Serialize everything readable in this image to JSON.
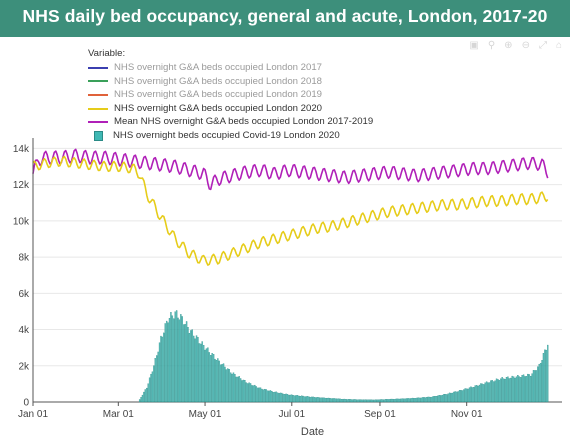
{
  "banner": {
    "title": "NHS daily bed occupancy, general and acute, London, 2017-20"
  },
  "legend": {
    "title": "Variable:",
    "items": [
      {
        "label": "NHS overnight G&A beds occupied London 2017",
        "color": "#3b3fb0",
        "kind": "line",
        "faded": true
      },
      {
        "label": "NHS overnight G&A beds occupied London 2018",
        "color": "#3aa05a",
        "kind": "line",
        "faded": true
      },
      {
        "label": "NHS overnight G&A beds occupied London 2019",
        "color": "#e0623a",
        "kind": "line",
        "faded": true
      },
      {
        "label": "NHS overnight G&A beds occupied London 2020",
        "color": "#e6cc1a",
        "kind": "line",
        "faded": false
      },
      {
        "label": "Mean NHS overnight G&A beds occupied London 2017-2019",
        "color": "#b020b8",
        "kind": "line",
        "faded": false
      },
      {
        "label": "NHS overnight beds occupied Covid-19 London 2020",
        "color": "#3fb8b4",
        "kind": "box",
        "faded": false
      }
    ]
  },
  "chart_data": {
    "type": "line",
    "x_unit": "day of year (Jan 1 = 0)",
    "xlabel": "Date",
    "ylabel": "",
    "xlim": [
      0,
      365
    ],
    "ylim": [
      0,
      14300
    ],
    "y_ticks": [
      0,
      2000,
      4000,
      6000,
      8000,
      10000,
      12000,
      14000
    ],
    "y_tick_labels": [
      "0",
      "2k",
      "4k",
      "6k",
      "8k",
      "10k",
      "12k",
      "14k"
    ],
    "x_ticks": [
      0,
      60,
      121,
      182,
      244,
      305
    ],
    "x_tick_labels": [
      "Jan 01",
      "Mar 01",
      "May 01",
      "Jul 01",
      "Sep 01",
      "Nov 01"
    ],
    "grid": "horizontal",
    "series": [
      {
        "name": "Mean NHS overnight G&A beds occupied London 2017-2019",
        "color": "#b020b8",
        "x": [
          0,
          4,
          10,
          20,
          30,
          40,
          50,
          60,
          70,
          80,
          90,
          100,
          110,
          120,
          125,
          130,
          140,
          150,
          160,
          170,
          180,
          190,
          200,
          210,
          220,
          230,
          240,
          250,
          260,
          270,
          280,
          290,
          300,
          310,
          320,
          330,
          340,
          350,
          358,
          362
        ],
        "y": [
          12600,
          13400,
          13500,
          13500,
          13600,
          13500,
          13500,
          13400,
          13300,
          13200,
          13100,
          13000,
          12800,
          12600,
          12000,
          12300,
          12500,
          12700,
          12800,
          12600,
          12800,
          12700,
          12600,
          12500,
          12400,
          12500,
          12600,
          12700,
          12600,
          12500,
          12600,
          12700,
          12800,
          12900,
          12900,
          13000,
          13100,
          13200,
          13100,
          12700
        ]
      },
      {
        "name": "NHS overnight G&A beds occupied London 2020",
        "color": "#e6cc1a",
        "x": [
          0,
          10,
          20,
          30,
          40,
          50,
          60,
          70,
          75,
          80,
          90,
          100,
          110,
          120,
          130,
          140,
          150,
          160,
          170,
          180,
          190,
          200,
          210,
          220,
          230,
          240,
          250,
          260,
          270,
          280,
          290,
          300,
          310,
          320,
          330,
          340,
          350,
          358,
          362
        ],
        "y": [
          13000,
          13200,
          13300,
          13200,
          13100,
          13000,
          13000,
          12900,
          12600,
          11500,
          10200,
          9000,
          8200,
          7800,
          7900,
          8200,
          8500,
          8800,
          9000,
          9200,
          9400,
          9600,
          9700,
          9900,
          10100,
          10300,
          10500,
          10600,
          10700,
          10800,
          10900,
          10900,
          11000,
          11100,
          11100,
          11200,
          11200,
          11300,
          11400
        ]
      }
    ],
    "bars": {
      "name": "NHS overnight beds occupied Covid-19 London 2020",
      "color": "#3fb8b4",
      "x": [
        74,
        80,
        85,
        90,
        95,
        100,
        105,
        110,
        120,
        130,
        140,
        150,
        160,
        170,
        180,
        190,
        200,
        210,
        220,
        230,
        240,
        250,
        260,
        270,
        280,
        290,
        300,
        310,
        320,
        330,
        340,
        350,
        356,
        362
      ],
      "y": [
        0,
        800,
        2000,
        3500,
        4600,
        4900,
        4600,
        4000,
        3100,
        2300,
        1600,
        1100,
        750,
        550,
        400,
        320,
        250,
        200,
        150,
        130,
        120,
        150,
        180,
        220,
        280,
        420,
        620,
        850,
        1100,
        1300,
        1400,
        1500,
        2000,
        3200
      ]
    }
  }
}
